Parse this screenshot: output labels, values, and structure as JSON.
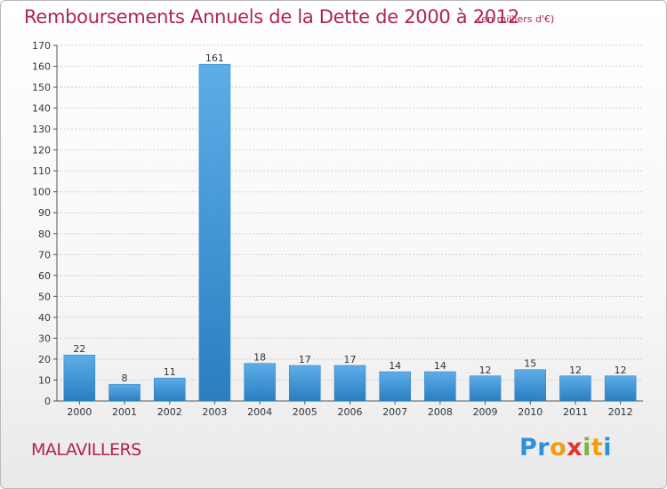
{
  "header": {
    "title": "Remboursements Annuels de la Dette de 2000 à 2012",
    "unit": "(en milliers d'€)"
  },
  "footer": {
    "commune": "MALAVILLERS",
    "logo_text": "Proxiti",
    "logo_letters": [
      {
        "ch": "P",
        "color": "#2f8fd8"
      },
      {
        "ch": "r",
        "color": "#2f8fd8"
      },
      {
        "ch": "o",
        "color": "#f39c12"
      },
      {
        "ch": "x",
        "color": "#e3342f"
      },
      {
        "ch": "i",
        "color": "#7cb342"
      },
      {
        "ch": "t",
        "color": "#f39c12"
      },
      {
        "ch": "i",
        "color": "#2f8fd8"
      }
    ]
  },
  "colors": {
    "title": "#b0215a",
    "bar_top": "#5dade8",
    "bar_bottom": "#2a7fc1",
    "grid": "#cfcfcf"
  },
  "chart_data": {
    "type": "bar",
    "categories": [
      "2000",
      "2001",
      "2002",
      "2003",
      "2004",
      "2005",
      "2006",
      "2007",
      "2008",
      "2009",
      "2010",
      "2011",
      "2012"
    ],
    "values": [
      22,
      8,
      11,
      161,
      18,
      17,
      17,
      14,
      14,
      12,
      15,
      12,
      12
    ],
    "title": "Remboursements Annuels de la Dette de 2000 à 2012",
    "ylim": [
      0,
      170
    ],
    "yticks": [
      0,
      10,
      20,
      30,
      40,
      50,
      60,
      70,
      80,
      90,
      100,
      110,
      120,
      130,
      140,
      150,
      160,
      170
    ],
    "grid": true
  }
}
